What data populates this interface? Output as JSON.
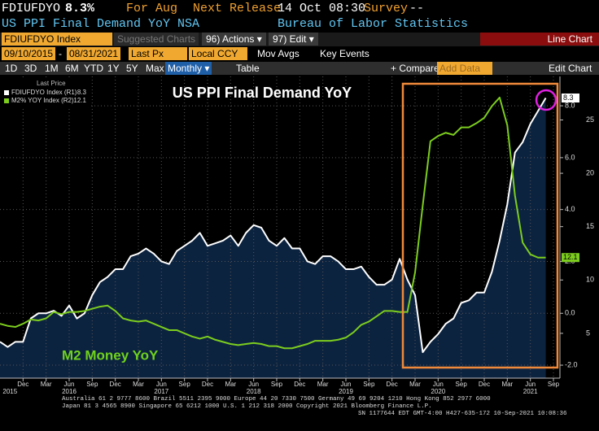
{
  "header": {
    "ticker": "FDIUFDYO",
    "last": "8.3%",
    "period": "For Aug",
    "release_label": "Next Release",
    "release": "14 Oct 08:30",
    "survey_label": "Survey",
    "survey": "--",
    "description": "US PPI Final Demand YoY NSA",
    "source": "Bureau of Labor Statistics"
  },
  "toolbar": {
    "security": "FDIUFDYO Index",
    "suggested": "Suggested Charts",
    "actions": "96) Actions ▾",
    "edit": "97) Edit ▾",
    "chart_type": "Line Chart",
    "start_date": "09/10/2015",
    "end_date": "08/31/2021",
    "price": "Last Px",
    "currency": "Local CCY",
    "mov_avgs": "Mov Avgs",
    "key_events": "Key Events",
    "ranges": [
      "1D",
      "3D",
      "1M",
      "6M",
      "YTD",
      "1Y",
      "5Y",
      "Max"
    ],
    "frequency": "Monthly ▾",
    "table": "Table",
    "compare": "+ Compare ▾",
    "add_data": "Add Data",
    "edit_chart": "Edit Chart"
  },
  "chart_data": {
    "type": "line",
    "title": "US PPI Final Demand YoY",
    "annotation": "M2 Money YoY",
    "legend_title": "Last Price",
    "categories": [
      null,
      null,
      null,
      "Dec",
      null,
      null,
      "Mar",
      null,
      null,
      "Jun",
      null,
      null,
      "Sep",
      null,
      null,
      "Dec",
      null,
      null,
      "Mar",
      null,
      null,
      "Jun",
      null,
      null,
      "Sep",
      null,
      null,
      "Dec",
      null,
      null,
      "Mar",
      null,
      null,
      "Jun",
      null,
      null,
      "Sep",
      null,
      null,
      "Dec",
      null,
      null,
      "Mar",
      null,
      null,
      "Jun",
      null,
      null,
      "Sep",
      null,
      null,
      "Dec",
      null,
      null,
      "Mar",
      null,
      null,
      "Jun",
      null,
      null,
      "Sep",
      null,
      null,
      "Dec",
      null,
      null,
      "Mar",
      null,
      null,
      "Jun",
      null,
      null,
      "Sep"
    ],
    "years": [
      "2015",
      "2016",
      "2017",
      "2018",
      "2019",
      "2020",
      "2021"
    ],
    "series": [
      {
        "name": "FDIUFDYO Index (R1)",
        "color": "#ffffff",
        "fill": "#0c2340",
        "values": [
          -1.1,
          -1.3,
          -1.1,
          -1.1,
          -0.2,
          0.0,
          0.0,
          0.1,
          -0.1,
          0.3,
          -0.2,
          0.0,
          0.7,
          1.2,
          1.4,
          1.7,
          1.7,
          2.2,
          2.3,
          2.5,
          2.3,
          2.0,
          1.9,
          2.4,
          2.6,
          2.8,
          3.1,
          2.6,
          2.7,
          2.8,
          3.0,
          2.6,
          3.1,
          3.4,
          3.3,
          2.8,
          2.6,
          2.9,
          2.5,
          2.5,
          2.0,
          1.9,
          2.2,
          2.2,
          2.0,
          1.7,
          1.7,
          1.8,
          1.4,
          1.1,
          1.1,
          1.3,
          2.1,
          1.3,
          0.7,
          -1.5,
          -1.1,
          -0.8,
          -0.4,
          -0.2,
          0.4,
          0.5,
          0.8,
          0.8,
          1.6,
          2.8,
          4.2,
          6.2,
          6.6,
          7.3,
          7.8,
          8.3,
          null
        ]
      },
      {
        "name": "M2% YOY Index (R2)",
        "color": "#7ccd1e",
        "axis": "y2",
        "values": [
          5.9,
          5.7,
          5.6,
          5.9,
          6.3,
          6.2,
          6.4,
          7.0,
          6.8,
          7.0,
          7.0,
          7.1,
          7.3,
          7.5,
          7.6,
          7.1,
          6.4,
          6.2,
          6.1,
          6.2,
          5.9,
          5.6,
          5.3,
          5.3,
          5.0,
          4.7,
          4.5,
          4.7,
          4.4,
          4.2,
          4.0,
          3.9,
          4.0,
          4.1,
          4.0,
          3.8,
          3.8,
          3.6,
          3.6,
          3.8,
          4.0,
          4.3,
          4.3,
          4.3,
          4.4,
          4.6,
          5.1,
          5.8,
          6.1,
          6.6,
          7.1,
          7.1,
          7.0,
          7.0,
          10.7,
          17.0,
          23.0,
          23.5,
          23.8,
          23.6,
          24.3,
          24.3,
          24.7,
          25.2,
          26.3,
          27.1,
          24.5,
          17.9,
          13.5,
          12.4,
          12.1,
          12.1,
          null
        ]
      }
    ],
    "ylim": [
      -2.5,
      9.1
    ],
    "yticks": [
      {
        "value": -2,
        "label": "-2.0"
      },
      {
        "value": 0,
        "label": "0.0"
      },
      {
        "value": 2,
        "label": "2.0"
      },
      {
        "value": 4,
        "label": "4.0"
      },
      {
        "value": 6,
        "label": "6.0"
      },
      {
        "value": 8,
        "label": "8.0"
      }
    ],
    "y2lim": [
      0.8,
      29
    ],
    "y2ticks": [
      5,
      10,
      15,
      20,
      25
    ],
    "grid": true
  },
  "footer": [
    "Australia 61 2 9777 8600 Brazil 5511 2395 9000 Europe 44 20 7330 7500 Germany 49 69 9204 1210 Hong Kong 852 2977 6000",
    "Japan 81 3 4565 8900 Singapore 65 6212 1000 U.S. 1 212 318 2000 Copyright 2021 Bloomberg Finance L.P.",
    "SN 1177644 EDT GMT-4:00 H427-635-172 10-Sep-2021 10:08:36"
  ]
}
